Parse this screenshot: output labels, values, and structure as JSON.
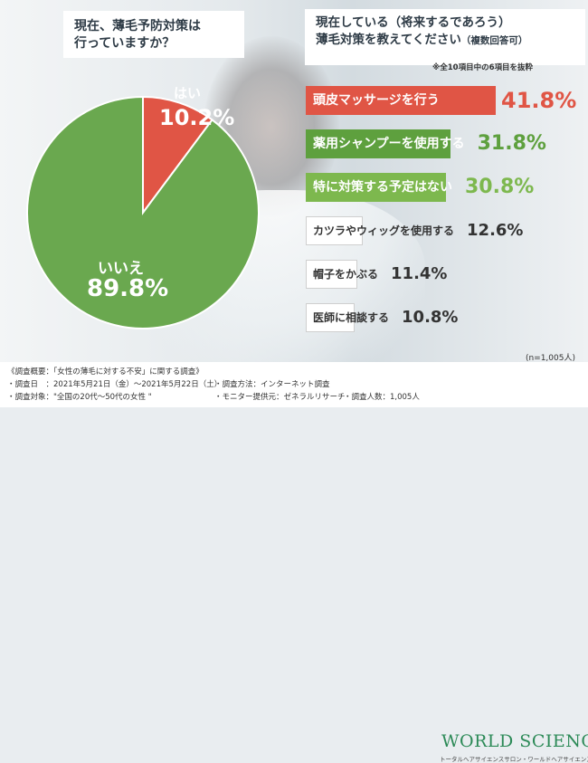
{
  "questions": {
    "q1": [
      "現在、薄毛予防対策は",
      "行っていますか？"
    ],
    "q2_line1": "現在している（将来するであろう）",
    "q2_line2": "薄毛対策を教えてください",
    "q2_sub": "（複数回答可）",
    "note": "※全10項目中の6項目を抜粋"
  },
  "sample_size": "(n=1,005人)",
  "colors": {
    "yes": "#e05545",
    "no": "#6aa84f",
    "top_bar_red": "#e05545",
    "green_dark": "#5ea03e",
    "green_light": "#7db84e",
    "gray": "#ffffff"
  },
  "chart_data": [
    {
      "type": "pie",
      "slices": [
        {
          "label": "はい",
          "value": 10.2,
          "display": "10.2%"
        },
        {
          "label": "いいえ",
          "value": 89.8,
          "display": "89.8%"
        }
      ]
    },
    {
      "type": "bar",
      "orientation": "horizontal",
      "categories": [
        "頭皮マッサージを行う",
        "薬用シャンプーを使用する",
        "特に対策する予定はない",
        "カツラやウィッグを使用する",
        "帽子をかぶる",
        "医師に相談する"
      ],
      "values": [
        41.8,
        31.8,
        30.8,
        12.6,
        11.4,
        10.8
      ],
      "labels": [
        "41.8%",
        "31.8%",
        "30.8%",
        "12.6%",
        "11.4%",
        "10.8%"
      ]
    }
  ],
  "footer": {
    "title": "《調査概要：「女性の薄毛に対する不安」に関する調査》",
    "date": "・調査日　：2021年5月21日（金）～2021年5月22日（土）",
    "method": "・調査方法：インターネット調査",
    "target": "・調査対象：\"全国の20代～50代の女性 \"",
    "provider": "・モニター提供元：ゼネラルリサーチ",
    "count": "・調査人数：1,005人",
    "brand": "WORLD SCIENCE",
    "brand_sub": "トータルヘアサイエンスサロン・ワールドヘアサイエンス"
  }
}
